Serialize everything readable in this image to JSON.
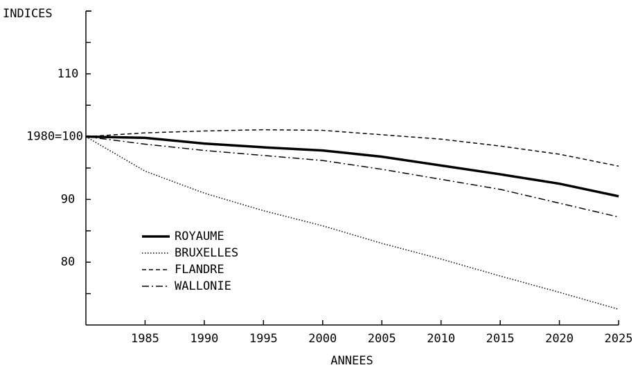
{
  "chart_data": {
    "type": "line",
    "y_label": "INDICES",
    "x_label": "ANNEES",
    "x": [
      1980,
      1985,
      1990,
      1995,
      2000,
      2005,
      2010,
      2015,
      2020,
      2025
    ],
    "series": [
      {
        "name": "ROYAUME",
        "color": "#000000",
        "dash": "solid",
        "values": [
          100,
          99.8,
          98.9,
          98.3,
          97.8,
          96.8,
          95.4,
          94.0,
          92.5,
          90.5
        ]
      },
      {
        "name": "BRUXELLES",
        "color": "#000000",
        "dash": "dotted",
        "values": [
          100,
          94.5,
          91.0,
          88.2,
          85.8,
          83.0,
          80.5,
          77.8,
          75.2,
          72.5
        ]
      },
      {
        "name": "FLANDRE",
        "color": "#000000",
        "dash": "dashed",
        "values": [
          100,
          100.6,
          100.9,
          101.1,
          101.0,
          100.3,
          99.6,
          98.5,
          97.2,
          95.3
        ]
      },
      {
        "name": "WALLONIE",
        "color": "#000000",
        "dash": "dashdot",
        "values": [
          100,
          98.8,
          97.8,
          97.0,
          96.2,
          94.8,
          93.2,
          91.6,
          89.4,
          87.2
        ]
      }
    ],
    "xlim": [
      1980,
      2025
    ],
    "xticks": [
      1985,
      1990,
      1995,
      2000,
      2005,
      2010,
      2015,
      2020,
      2025
    ],
    "ylim": [
      70,
      120
    ],
    "yticks": [
      80,
      90,
      {
        "value": 100,
        "label": "1980=100"
      },
      110
    ],
    "minor_yticks": [
      75,
      85,
      95,
      105,
      115,
      120
    ],
    "grid": false,
    "legend": "lower left"
  }
}
